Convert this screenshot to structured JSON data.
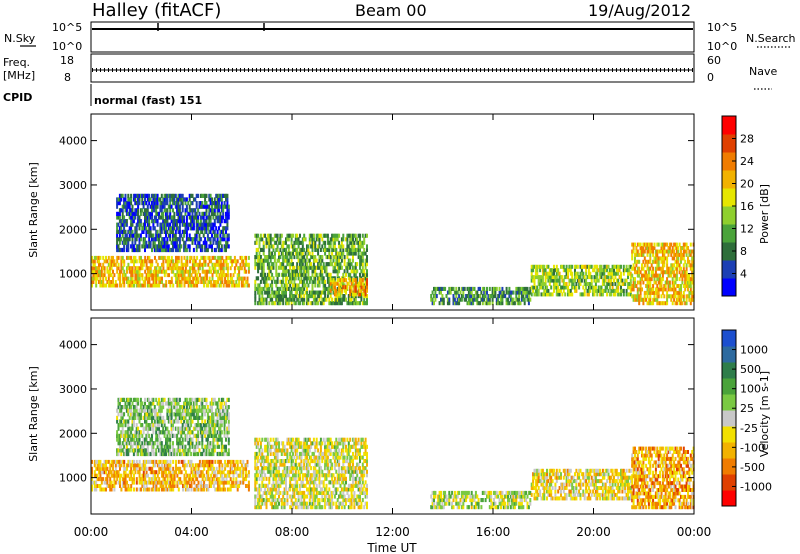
{
  "header": {
    "station": "Halley (fitACF)",
    "beam": "Beam 00",
    "date": "19/Aug/2012"
  },
  "top_panels": {
    "nsky": {
      "label_top": "N.Sky",
      "ticks": [
        "10^5",
        "10^0"
      ]
    },
    "nsearch": {
      "label": "N.Search",
      "ticks": [
        "10^5",
        "10^0"
      ]
    },
    "freq": {
      "label_top": "Freq.",
      "label_unit": "[MHz]",
      "ticks": [
        "18",
        "8"
      ]
    },
    "nave": {
      "label": "Nave",
      "ticks": [
        "60",
        "0"
      ]
    },
    "cpid": {
      "label": "CPID",
      "value": "normal (fast) 151"
    }
  },
  "power_colorbar": {
    "label": "Power [dB]",
    "ticks": [
      "28",
      "24",
      "20",
      "16",
      "12",
      "8",
      "4"
    ],
    "colors": [
      "#0000ff",
      "#1c3fb4",
      "#2e6e3a",
      "#4aa33a",
      "#8fcf2e",
      "#e6e600",
      "#f2b200",
      "#f07c00",
      "#e04000",
      "#ff0000"
    ]
  },
  "velocity_colorbar": {
    "label": "Velocity [m s-1]",
    "ticks": [
      "1000",
      "500",
      "100",
      "25",
      "-25",
      "-100",
      "-500",
      "-1000"
    ],
    "colors": [
      "#1c4fcf",
      "#2d6a9f",
      "#2e7d4a",
      "#4aa33a",
      "#7ac943",
      "#c8c8c8",
      "#f2e000",
      "#f2b200",
      "#f07c00",
      "#e04000",
      "#ff0000"
    ]
  },
  "axes": {
    "ylabel": "Slant Range [km]",
    "xlabel": "Time UT",
    "yticks": [
      "4000",
      "3000",
      "2000",
      "1000"
    ],
    "xticks": [
      "00:00",
      "04:00",
      "08:00",
      "12:00",
      "16:00",
      "20:00",
      "00:00"
    ]
  },
  "chart_data": [
    {
      "type": "heatmap",
      "title": "Power",
      "xlabel": "Time UT",
      "ylabel": "Slant Range [km]",
      "xlim": [
        0,
        24
      ],
      "ylim": [
        180,
        4600
      ],
      "colorbar_range_db": [
        0,
        32
      ],
      "echo_regions": [
        {
          "t": [
            0.0,
            6.3
          ],
          "range_km": [
            700,
            1400
          ],
          "power_db": 20
        },
        {
          "t": [
            1.0,
            5.5
          ],
          "range_km": [
            1500,
            2800
          ],
          "power_db": 6
        },
        {
          "t": [
            6.5,
            11.0
          ],
          "range_km": [
            300,
            1900
          ],
          "power_db": 12
        },
        {
          "t": [
            9.5,
            11.0
          ],
          "range_km": [
            500,
            900
          ],
          "power_db": 22
        },
        {
          "t": [
            13.5,
            17.5
          ],
          "range_km": [
            300,
            700
          ],
          "power_db": 10
        },
        {
          "t": [
            17.5,
            21.5
          ],
          "range_km": [
            500,
            1200
          ],
          "power_db": 14
        },
        {
          "t": [
            21.5,
            24.0
          ],
          "range_km": [
            300,
            1700
          ],
          "power_db": 20
        }
      ]
    },
    {
      "type": "heatmap",
      "title": "Velocity",
      "xlabel": "Time UT",
      "ylabel": "Slant Range [km]",
      "xlim": [
        0,
        24
      ],
      "ylim": [
        180,
        4600
      ],
      "colorbar_range_ms": [
        -1000,
        1000
      ],
      "echo_regions": [
        {
          "t": [
            0.0,
            6.3
          ],
          "range_km": [
            700,
            1400
          ],
          "velocity_ms": -300
        },
        {
          "t": [
            1.0,
            5.5
          ],
          "range_km": [
            1500,
            2800
          ],
          "velocity_ms": 200
        },
        {
          "t": [
            6.5,
            11.0
          ],
          "range_km": [
            300,
            1900
          ],
          "velocity_ms": -50
        },
        {
          "t": [
            13.5,
            17.5
          ],
          "range_km": [
            300,
            700
          ],
          "velocity_ms": 50
        },
        {
          "t": [
            17.5,
            21.5
          ],
          "range_km": [
            500,
            1200
          ],
          "velocity_ms": -150
        },
        {
          "t": [
            21.5,
            24.0
          ],
          "range_km": [
            300,
            1700
          ],
          "velocity_ms": -400
        }
      ]
    }
  ]
}
